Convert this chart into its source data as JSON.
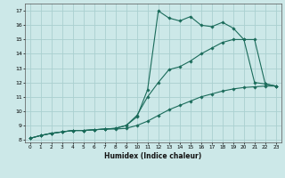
{
  "xlabel": "Humidex (Indice chaleur)",
  "bg_color": "#cce8e8",
  "grid_color": "#aad0d0",
  "line_color": "#1a6b5a",
  "xlim": [
    -0.5,
    23.5
  ],
  "ylim": [
    7.8,
    17.5
  ],
  "xticks": [
    0,
    1,
    2,
    3,
    4,
    5,
    6,
    7,
    8,
    9,
    10,
    11,
    12,
    13,
    14,
    15,
    16,
    17,
    18,
    19,
    20,
    21,
    22,
    23
  ],
  "yticks": [
    8,
    9,
    10,
    11,
    12,
    13,
    14,
    15,
    16,
    17
  ],
  "line1_x": [
    0,
    1,
    2,
    3,
    4,
    5,
    6,
    7,
    8,
    9,
    10,
    11,
    12,
    13,
    14,
    15,
    16,
    17,
    18,
    19,
    20,
    21,
    22,
    23
  ],
  "line1_y": [
    8.1,
    8.3,
    8.45,
    8.55,
    8.65,
    8.65,
    8.7,
    8.75,
    8.75,
    8.8,
    9.0,
    9.3,
    9.7,
    10.1,
    10.4,
    10.7,
    11.0,
    11.2,
    11.4,
    11.55,
    11.65,
    11.7,
    11.75,
    11.75
  ],
  "line2_x": [
    0,
    1,
    2,
    3,
    4,
    5,
    6,
    7,
    8,
    9,
    10,
    11,
    12,
    13,
    14,
    15,
    16,
    17,
    18,
    19,
    20,
    21,
    22,
    23
  ],
  "line2_y": [
    8.1,
    8.3,
    8.45,
    8.55,
    8.65,
    8.65,
    8.7,
    8.75,
    8.8,
    9.0,
    9.7,
    11.0,
    12.0,
    12.9,
    13.1,
    13.5,
    14.0,
    14.4,
    14.8,
    15.0,
    15.0,
    15.0,
    11.9,
    11.75
  ],
  "line3_x": [
    0,
    1,
    2,
    3,
    4,
    5,
    6,
    7,
    8,
    9,
    10,
    11,
    12,
    13,
    14,
    15,
    16,
    17,
    18,
    19,
    20,
    21,
    22,
    23
  ],
  "line3_y": [
    8.1,
    8.3,
    8.45,
    8.55,
    8.65,
    8.65,
    8.7,
    8.75,
    8.8,
    9.0,
    9.6,
    11.5,
    17.0,
    16.5,
    16.3,
    16.6,
    16.0,
    15.9,
    16.2,
    15.8,
    15.0,
    12.0,
    11.9,
    11.75
  ]
}
